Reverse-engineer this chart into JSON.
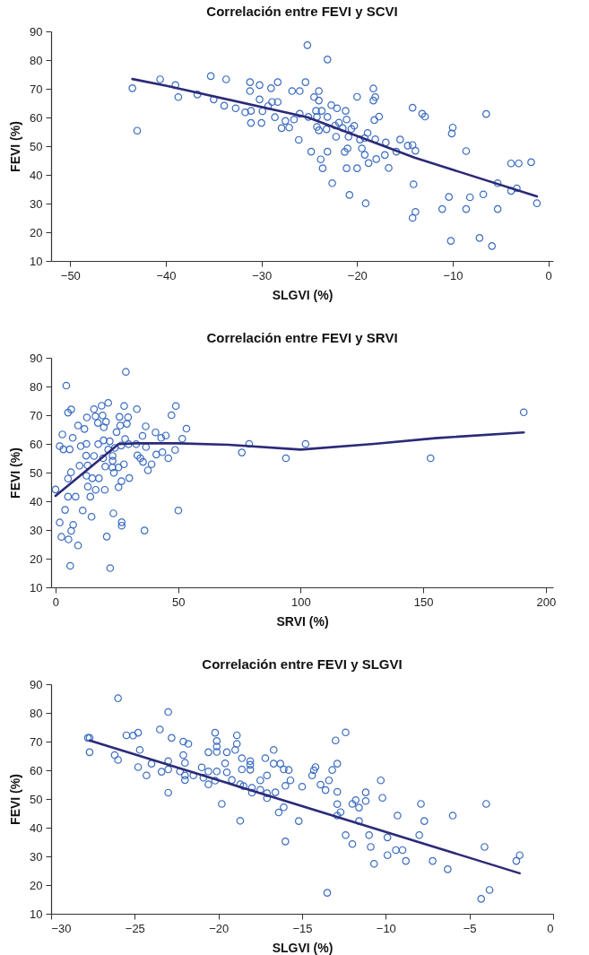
{
  "chart_data": [
    {
      "type": "scatter",
      "title": "Correlación entre FEVI y SCVI",
      "xlabel": "SLGVI (%)",
      "ylabel": "FEVI (%)",
      "xlim": [
        -52,
        0.5
      ],
      "xticks": [
        -50,
        -40,
        -30,
        -20,
        -10,
        0
      ],
      "ylim": [
        10,
        90
      ],
      "yticks": [
        10,
        20,
        30,
        40,
        50,
        60,
        70,
        80,
        90
      ],
      "marker": "circle",
      "series": [
        {
          "type": "scatter",
          "color": "#3b6cc0",
          "x": [
            -43.5,
            -43.0,
            -40.6,
            -39.0,
            -38.7,
            -36.7,
            -35.3,
            -35.0,
            -33.9,
            -33.7,
            -32.7,
            -31.7,
            -31.1,
            -31.2,
            -31.2,
            -31.1,
            -30.2,
            -30.2,
            -30.0,
            -29.9,
            -29.0,
            -28.9,
            -28.3,
            -28.3,
            -29.3,
            -28.6,
            -27.9,
            -27.5,
            -27.1,
            -26.6,
            -26.8,
            -26.0,
            -26.1,
            -26.0,
            -25.4,
            -25.2,
            -23.1,
            -24.0,
            -24.5,
            -24.0,
            -22.7,
            -22.1,
            -21.2,
            -24.3,
            -23.7,
            -25.1,
            -24.2,
            -23.1,
            -21.1,
            -21.9,
            -22.3,
            -24.2,
            -24.0,
            -23.2,
            -21.5,
            -20.3,
            -20.6,
            -20.9,
            -22.2,
            -20.0,
            -18.3,
            -18.1,
            -18.3,
            -17.7,
            -18.2,
            -18.9,
            -19.7,
            -19.2,
            -18.1,
            -17.0,
            -15.5,
            -15.9,
            -14.7,
            -14.2,
            -13.9,
            -17.1,
            -18.0,
            -18.8,
            -19.2,
            -19.5,
            -21.0,
            -21.3,
            -23.1,
            -24.8,
            -23.8,
            -23.6,
            -21.1,
            -20.0,
            -16.7,
            -22.6,
            -20.8,
            -19.1,
            -14.2,
            -13.2,
            -12.9,
            -10.0,
            -10.1,
            -6.5,
            -8.6,
            -3.9,
            -3.1,
            -1.8,
            -14.1,
            -10.4,
            -8.2,
            -6.8,
            -5.3,
            -3.9,
            -3.3,
            -1.2,
            -11.1,
            -8.6,
            -5.3,
            -13.9,
            -14.2,
            -10.2,
            -7.2,
            -5.9
          ],
          "values": [
            70.2,
            55.4,
            73.3,
            71.3,
            67.1,
            68,
            74.4,
            66.3,
            64.1,
            73.3,
            63.2,
            61.8,
            62.3,
            72.3,
            69.2,
            58.1,
            71.3,
            66.3,
            58.1,
            62.2,
            70.2,
            65.4,
            72.3,
            65.4,
            64,
            60.1,
            56.3,
            58.8,
            56.5,
            59.3,
            69.2,
            69.2,
            52.2,
            61.3,
            72.3,
            85.2,
            80.2,
            69.2,
            67.1,
            65.9,
            64.3,
            63.2,
            62.3,
            62.3,
            62.3,
            60.2,
            60.2,
            60.2,
            59.3,
            58.2,
            57.2,
            56.7,
            55.5,
            55.9,
            56.3,
            57.1,
            56,
            53.3,
            53.3,
            67.2,
            70.1,
            67.1,
            65.9,
            60.3,
            59.1,
            54.6,
            52.3,
            52.8,
            52.4,
            51.3,
            52.3,
            48.1,
            50.2,
            50.4,
            48.4,
            46.9,
            45.5,
            44.1,
            47,
            49.2,
            49.2,
            48,
            48.1,
            48.1,
            45.4,
            42.3,
            42.3,
            42.3,
            42.4,
            37.1,
            33,
            30.1,
            63.4,
            61.3,
            60.3,
            56.5,
            54.4,
            61.2,
            48.3,
            44,
            44,
            44.4,
            36.7,
            32.3,
            32.2,
            33.2,
            37.1,
            34.4,
            35.3,
            30.1,
            28.1,
            28.1,
            28.1,
            27.1,
            25,
            17,
            18,
            15.2
          ]
        },
        {
          "type": "line",
          "marker": "none",
          "color": "#2b2a78",
          "x": [
            -43.5,
            -39.9,
            -25.2,
            -14,
            -1.2
          ],
          "values": [
            73.4,
            71,
            60.1,
            46,
            32.5
          ]
        }
      ]
    },
    {
      "type": "scatter",
      "title": "Correlación entre FEVI y SRVI",
      "xlabel": "SRVI (%)",
      "ylabel": "FEVI (%)",
      "xlim": [
        -1.8,
        203
      ],
      "xticks": [
        0,
        50,
        100,
        150,
        200
      ],
      "ylim": [
        10,
        90
      ],
      "yticks": [
        10,
        20,
        30,
        40,
        50,
        60,
        70,
        80,
        90
      ],
      "marker": "circle",
      "series": [
        {
          "type": "scatter",
          "color": "#3b6cc0",
          "x": [
            0,
            1.7,
            2.8,
            3.2,
            4.4,
            5.1,
            6.4,
            5.8,
            7.0,
            9.2,
            11.8,
            12.8,
            15.7,
            18.8,
            21.5,
            16.3,
            19.2,
            17.3,
            19.7,
            20.6,
            28,
            33.2,
            28.7,
            26.1,
            29.6,
            29.1,
            26.4,
            24.9,
            36.8,
            40.8,
            45.0,
            43.1,
            51.7,
            53.4,
            47.3,
            49.1,
            48.8,
            46,
            43.6,
            41.1,
            39.2,
            37.7,
            35.7,
            34.6,
            33.4,
            36.9,
            35.5,
            32.9,
            29.8,
            28.4,
            24.2,
            26.8,
            22.1,
            19.6,
            17.4,
            12.6,
            10.3,
            12.5,
            15.7,
            19.4,
            21.5,
            23.3,
            23.3,
            20.3,
            23.2,
            25.7,
            27.9,
            23.8,
            30.1,
            26.9,
            25.7,
            20.1,
            16.4,
            13.1,
            9.8,
            6.3,
            5.1,
            12.6,
            15,
            17.7,
            13.2,
            14.2,
            5.1,
            8.2,
            3.9,
            11.1,
            14.7,
            1.7,
            7.2,
            6.4,
            2.4,
            5.3,
            9.2,
            20.9,
            23.6,
            27,
            27,
            36.3,
            6,
            22.3,
            50.1,
            76,
            79,
            94,
            102,
            153,
            191
          ],
          "values": [
            44.1,
            59.2,
            63.3,
            58.1,
            80.3,
            70.9,
            72,
            58.1,
            62.1,
            66.4,
            65.2,
            69.2,
            72.1,
            73.3,
            74.3,
            69.6,
            69.9,
            67.3,
            65.8,
            67.7,
            73.2,
            72.1,
            85.1,
            69.4,
            69.3,
            67,
            66.4,
            64.1,
            66.1,
            64,
            62.9,
            62.1,
            61.8,
            65.3,
            70,
            73.2,
            57.9,
            55,
            57.1,
            56.3,
            52.9,
            50.8,
            53.7,
            55,
            56,
            58.9,
            62.8,
            59.9,
            59.9,
            61.7,
            58.6,
            59.4,
            60.9,
            61.2,
            59.9,
            60,
            59.2,
            55.9,
            55.8,
            55,
            58,
            55.8,
            54.1,
            52.1,
            51.8,
            51.8,
            52.9,
            49.9,
            48.1,
            47,
            44.9,
            44,
            44,
            52.5,
            52.4,
            50.1,
            47.9,
            48.9,
            48,
            48,
            45.1,
            41.6,
            41.6,
            41.6,
            37,
            36.8,
            34.6,
            32.6,
            31.8,
            29.7,
            27.6,
            26.7,
            24.6,
            27.7,
            35.8,
            32.7,
            31.5,
            29.8,
            17.5,
            16.7,
            36.8,
            57,
            60,
            55,
            60,
            55,
            71
          ]
        },
        {
          "type": "line",
          "marker": "none",
          "color": "#2b2a78",
          "x": [
            0,
            25.7,
            32.7,
            50,
            70.6,
            100,
            130,
            155,
            191
          ],
          "values": [
            41.9,
            59.9,
            60.2,
            60.2,
            59.7,
            58,
            60,
            62,
            64
          ]
        }
      ]
    },
    {
      "type": "scatter",
      "title": "Correlación entre FEVI y SLGVI",
      "xlabel": "SLGVI (%)",
      "ylabel": "FEVI (%)",
      "xlim": [
        -30,
        0
      ],
      "xticks": [
        -30,
        -25,
        -20,
        -15,
        -10,
        -5,
        0
      ],
      "ylim": [
        10,
        90
      ],
      "yticks": [
        10,
        20,
        30,
        40,
        50,
        60,
        70,
        80,
        90
      ],
      "marker": "circle",
      "series": [
        {
          "type": "scatter",
          "color": "#3b6cc0",
          "x": [
            -27.8,
            -27.7,
            -27.7,
            -26.2,
            -26,
            -26,
            -25.5,
            -25.1,
            -24.8,
            -24.7,
            -24.8,
            -24.3,
            -24,
            -23.5,
            -23,
            -22.8,
            -23,
            -23,
            -23.4,
            -23,
            -22.1,
            -21.8,
            -22.1,
            -22,
            -22.3,
            -22,
            -22,
            -21.5,
            -21,
            -20.9,
            -20.6,
            -20.6,
            -20.6,
            -20.2,
            -20.1,
            -20.1,
            -20.1,
            -20.1,
            -20.2,
            -19.8,
            -19.6,
            -19.5,
            -19.5,
            -19.2,
            -19,
            -18.9,
            -18.9,
            -18.6,
            -18.6,
            -18.7,
            -18.5,
            -18.7,
            -18.1,
            -18.1,
            -18.1,
            -18,
            -18,
            -17.5,
            -17.5,
            -17.2,
            -17.1,
            -17.1,
            -17.1,
            -16.7,
            -16.7,
            -16.3,
            -16.1,
            -15.8,
            -15.7,
            -16,
            -16.6,
            -16.1,
            -16.4,
            -16,
            -15.2,
            -15,
            -14.4,
            -14.3,
            -14.2,
            -13.9,
            -13.6,
            -13.4,
            -13.2,
            -12.9,
            -13,
            -12.4,
            -12.9,
            -12.9,
            -12.9,
            -12.7,
            -12,
            -11.8,
            -11.6,
            -11.6,
            -11.2,
            -11.2,
            -12.4,
            -12,
            -11,
            -10.9,
            -10.7,
            -10.3,
            -10.2,
            -9.9,
            -9.9,
            -9.4,
            -9,
            -8.8,
            -9.3,
            -13.5,
            -7.9,
            -7.7,
            -8,
            -7.2,
            -6.3,
            -6,
            -4,
            -4.1,
            -4.3,
            -3.8,
            -2.2,
            -2
          ],
          "values": [
            71.3,
            71.3,
            66.3,
            65.3,
            63.6,
            85.1,
            72.2,
            72.1,
            73.1,
            67.1,
            61.1,
            58.2,
            62.3,
            74.2,
            80.3,
            71.3,
            63.2,
            60.3,
            59.5,
            52.2,
            70,
            69.2,
            65.3,
            62.6,
            59.6,
            58.2,
            56.6,
            58.2,
            61,
            57.4,
            55.1,
            59.6,
            66.3,
            73.1,
            70.2,
            68.3,
            66.4,
            59.6,
            56.4,
            48.3,
            62.4,
            59.3,
            66.3,
            56.6,
            67.1,
            69.2,
            72.2,
            64.2,
            60.3,
            55.1,
            54.5,
            42.4,
            63.2,
            61.9,
            60.2,
            53.9,
            52.2,
            53.2,
            56.5,
            64.2,
            58.2,
            52,
            50.3,
            67.1,
            62.3,
            62.3,
            60.3,
            60.1,
            56.5,
            54.6,
            52.3,
            47.1,
            45.3,
            35.2,
            42.3,
            54.3,
            58.2,
            60,
            61.1,
            55,
            53.1,
            56.5,
            60.1,
            62.3,
            70.4,
            73.2,
            52.5,
            48.2,
            44.2,
            45.4,
            48.3,
            49.6,
            47,
            42.3,
            52.3,
            49.3,
            37.4,
            34.3,
            37.4,
            33.3,
            27.4,
            56.5,
            50.4,
            36.6,
            30.4,
            32.2,
            32.2,
            28.4,
            44.2,
            17.3,
            48.3,
            42.3,
            37.4,
            28.4,
            25.5,
            44.2,
            48.3,
            33.3,
            15.2,
            18.3,
            28.4,
            30.4
          ]
        },
        {
          "type": "line",
          "marker": "none",
          "color": "#2b2a78",
          "x": [
            -27.7,
            -2
          ],
          "values": [
            70.4,
            24.1
          ]
        }
      ]
    }
  ]
}
